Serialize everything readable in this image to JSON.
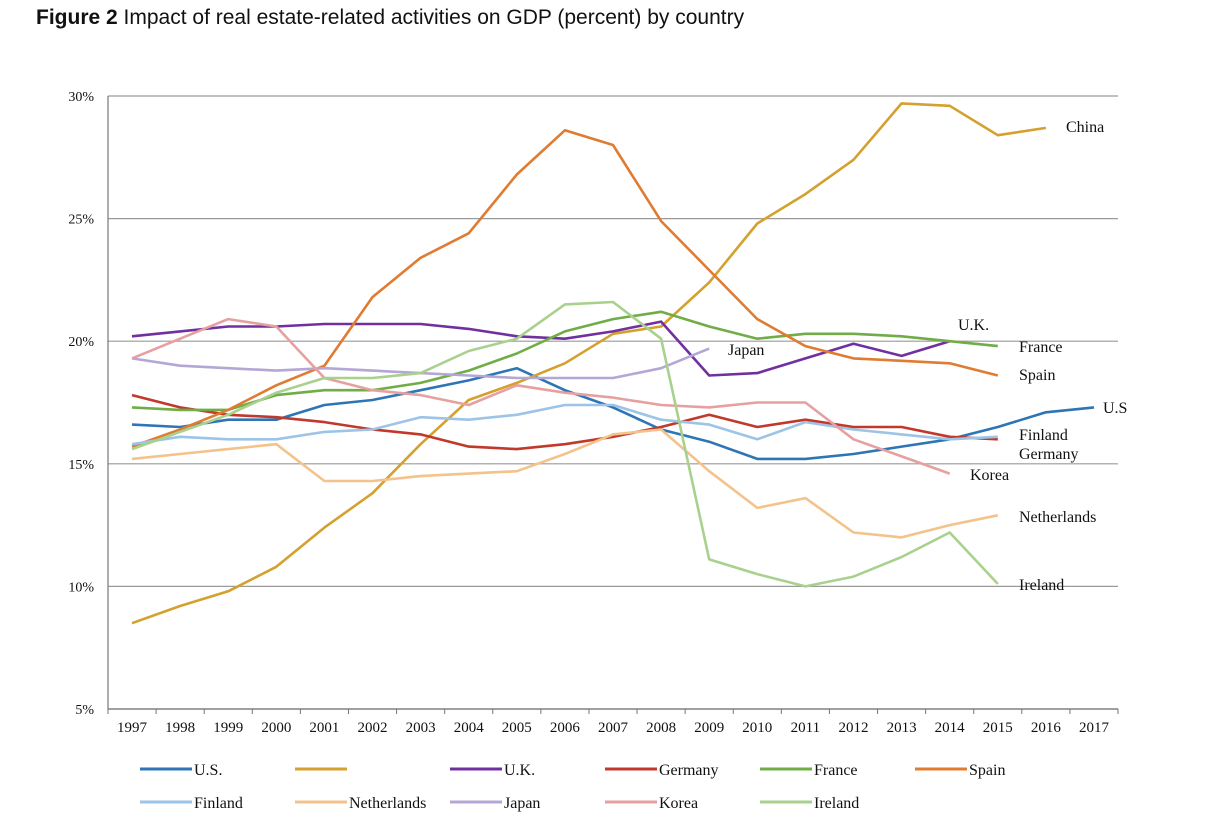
{
  "figure": {
    "label": "Figure 2",
    "caption": "Impact of real estate-related activities on GDP (percent) by country"
  },
  "chart_data": {
    "type": "line",
    "title": "Impact of real estate-related activities on GDP (percent) by country",
    "xlabel": "",
    "ylabel": "",
    "x": [
      "1997",
      "1998",
      "1999",
      "2000",
      "2001",
      "2002",
      "2003",
      "2004",
      "2005",
      "2006",
      "2007",
      "2008",
      "2009",
      "2010",
      "2011",
      "2012",
      "2013",
      "2014",
      "2015",
      "2016",
      "2017"
    ],
    "ylim": [
      5,
      30
    ],
    "yticks": [
      5,
      10,
      15,
      20,
      25,
      30
    ],
    "ytick_labels": [
      "5%",
      "10%",
      "15%",
      "20%",
      "25%",
      "30%"
    ],
    "grid": "horizontal",
    "legend_position": "bottom",
    "series": [
      {
        "name": "U.S.",
        "end_label": "U.S",
        "color": "#2e75b6",
        "legend_row": 0,
        "values": [
          16.6,
          16.5,
          16.8,
          16.8,
          17.4,
          17.6,
          18.0,
          18.4,
          18.9,
          18.0,
          17.3,
          16.4,
          15.9,
          15.2,
          15.2,
          15.4,
          15.7,
          16.0,
          16.5,
          17.1,
          17.3
        ]
      },
      {
        "name": "",
        "end_label": "China",
        "color": "#d4a12e",
        "legend_row": 0,
        "values": [
          8.5,
          9.2,
          9.8,
          10.8,
          12.4,
          13.8,
          15.8,
          17.6,
          18.3,
          19.1,
          20.3,
          20.6,
          22.4,
          24.8,
          26.0,
          27.4,
          29.7,
          29.6,
          28.4,
          28.7,
          null
        ]
      },
      {
        "name": "U.K.",
        "end_label": "U.K.",
        "color": "#7030a0",
        "legend_row": 0,
        "values": [
          20.2,
          20.4,
          20.6,
          20.6,
          20.7,
          20.7,
          20.7,
          20.5,
          20.2,
          20.1,
          20.4,
          20.8,
          18.6,
          18.7,
          19.3,
          19.9,
          19.4,
          20.0,
          null,
          null,
          null
        ]
      },
      {
        "name": "Germany",
        "end_label": "Germany",
        "color": "#c0392b",
        "legend_row": 0,
        "values": [
          17.8,
          17.3,
          17.0,
          16.9,
          16.7,
          16.4,
          16.2,
          15.7,
          15.6,
          15.8,
          16.1,
          16.5,
          17.0,
          16.5,
          16.8,
          16.5,
          16.5,
          16.1,
          16.0,
          null,
          null
        ]
      },
      {
        "name": "France",
        "end_label": "France",
        "color": "#70ad47",
        "legend_row": 0,
        "values": [
          17.3,
          17.2,
          17.2,
          17.8,
          18.0,
          18.0,
          18.3,
          18.8,
          19.5,
          20.4,
          20.9,
          21.2,
          20.6,
          20.1,
          20.3,
          20.3,
          20.2,
          20.0,
          19.8,
          null,
          null
        ]
      },
      {
        "name": "Spain",
        "end_label": "Spain",
        "color": "#e07b32",
        "legend_row": 0,
        "values": [
          15.7,
          16.4,
          17.2,
          18.2,
          19.0,
          21.8,
          23.4,
          24.4,
          26.8,
          28.6,
          28.0,
          24.9,
          22.9,
          20.9,
          19.8,
          19.3,
          19.2,
          19.1,
          18.6,
          null,
          null
        ]
      },
      {
        "name": "Finland",
        "end_label": "Finland",
        "color": "#9dc3e6",
        "legend_row": 1,
        "values": [
          15.8,
          16.1,
          16.0,
          16.0,
          16.3,
          16.4,
          16.9,
          16.8,
          17.0,
          17.4,
          17.4,
          16.8,
          16.6,
          16.0,
          16.7,
          16.4,
          16.2,
          16.0,
          16.1,
          null,
          null
        ]
      },
      {
        "name": "Netherlands",
        "end_label": "Netherlands",
        "color": "#f4c28b",
        "legend_row": 1,
        "values": [
          15.2,
          15.4,
          15.6,
          15.8,
          14.3,
          14.3,
          14.5,
          14.6,
          14.7,
          15.4,
          16.2,
          16.4,
          14.7,
          13.2,
          13.6,
          12.2,
          12.0,
          12.5,
          12.9,
          null,
          null
        ]
      },
      {
        "name": "Japan",
        "end_label": "Japan",
        "color": "#b4a7d6",
        "legend_row": 1,
        "values": [
          19.3,
          19.0,
          18.9,
          18.8,
          18.9,
          18.8,
          18.7,
          18.6,
          18.5,
          18.5,
          18.5,
          18.9,
          19.7,
          null,
          null,
          null,
          null,
          null,
          null,
          null,
          null
        ]
      },
      {
        "name": "Korea",
        "end_label": "Korea",
        "color": "#e6a0a0",
        "legend_row": 1,
        "values": [
          19.3,
          20.1,
          20.9,
          20.6,
          18.5,
          18.0,
          17.8,
          17.4,
          18.2,
          17.9,
          17.7,
          17.4,
          17.3,
          17.5,
          17.5,
          16.0,
          15.3,
          14.6,
          null,
          null,
          null
        ]
      },
      {
        "name": "Ireland",
        "end_label": "Ireland",
        "color": "#a9d18e",
        "legend_row": 1,
        "values": [
          15.6,
          16.3,
          17.0,
          17.9,
          18.5,
          18.5,
          18.7,
          19.6,
          20.1,
          21.5,
          21.6,
          20.1,
          11.1,
          10.5,
          10.0,
          10.4,
          11.2,
          12.2,
          10.1,
          null,
          null
        ]
      }
    ]
  }
}
